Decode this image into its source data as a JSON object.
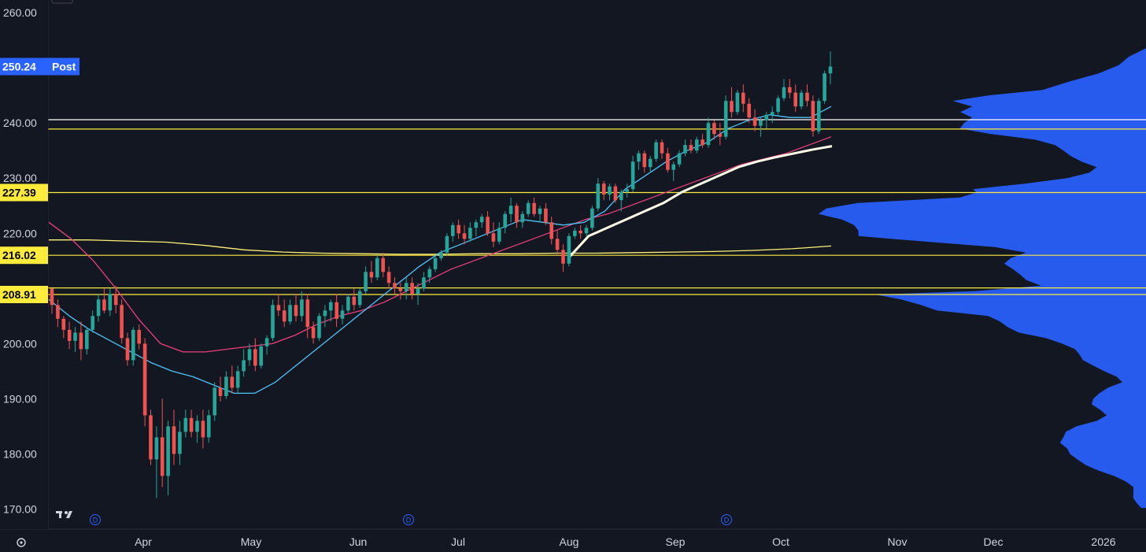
{
  "chart_data": {
    "type": "candlestick",
    "y_ticks": [
      "260.00",
      "240.00",
      "230.00",
      "220.00",
      "200.00",
      "190.00",
      "180.00",
      "170.00"
    ],
    "y_tick_values": [
      260,
      240,
      230,
      220,
      200,
      190,
      180,
      170
    ],
    "ylim": [
      168.5,
      262.3
    ],
    "x_ticks": [
      "Apr",
      "May",
      "Jun",
      "Jul",
      "Aug",
      "Sep",
      "Oct",
      "Nov",
      "Dec",
      "2026"
    ],
    "price_tags": [
      {
        "value": 250.24,
        "label": "250.24",
        "suffix": "Post",
        "color": "#2962ff",
        "text_color": "#ffffff"
      },
      {
        "value": 227.39,
        "label": "227.39",
        "color": "#ffeb3b",
        "text_color": "#000000"
      },
      {
        "value": 216.02,
        "label": "216.02",
        "color": "#ffeb3b",
        "text_color": "#000000"
      },
      {
        "value": 208.91,
        "label": "208.91",
        "color": "#ffeb3b",
        "text_color": "#000000"
      }
    ],
    "horizontal_levels": [
      {
        "value": 240.6,
        "color": "#ffffff"
      },
      {
        "value": 238.9,
        "color": "#ffeb3b"
      },
      {
        "value": 227.39,
        "color": "#ffeb3b"
      },
      {
        "value": 216.02,
        "color": "#ffeb3b"
      },
      {
        "value": 210.1,
        "color": "#ffeb3b"
      },
      {
        "value": 208.91,
        "color": "#ffeb3b"
      }
    ],
    "dividend_markers": [
      "D",
      "D",
      "D"
    ],
    "colors": {
      "up": "#26a69a",
      "down": "#ef5350",
      "volume_profile": "#2962ff",
      "ma_fast": "#4fc3f7",
      "ma_mid": "#ec407a",
      "ma_slow": "#fff176",
      "vwap": "#fffde7"
    },
    "candles": [
      [
        210.0,
        209.5,
        205.4,
        207.0
      ],
      [
        207.0,
        208.0,
        203.0,
        204.5
      ],
      [
        204.5,
        205.0,
        201.0,
        202.5
      ],
      [
        202.5,
        204.0,
        199.0,
        200.5
      ],
      [
        200.5,
        203.0,
        198.5,
        202.0
      ],
      [
        202.0,
        204.0,
        197.0,
        199.0
      ],
      [
        199.0,
        203.0,
        198.0,
        202.5
      ],
      [
        202.5,
        206.0,
        202.0,
        205.0
      ],
      [
        205.0,
        209.0,
        204.0,
        208.0
      ],
      [
        208.0,
        210.0,
        205.5,
        206.0
      ],
      [
        206.0,
        210.0,
        205.0,
        209.0
      ],
      [
        209.0,
        210.5,
        205.5,
        207.0
      ],
      [
        207.0,
        208.0,
        200.0,
        201.0
      ],
      [
        201.0,
        202.0,
        196.0,
        197.0
      ],
      [
        197.0,
        203.0,
        196.0,
        202.5
      ],
      [
        202.5,
        203.5,
        199.0,
        200.0
      ],
      [
        200.0,
        201.0,
        185.0,
        187.0
      ],
      [
        187.0,
        188.0,
        178.0,
        179.0
      ],
      [
        179.0,
        185.0,
        172.0,
        183.0
      ],
      [
        183.0,
        190.0,
        174.0,
        176.0
      ],
      [
        176.0,
        186.0,
        172.5,
        185.0
      ],
      [
        185.0,
        188.0,
        178.0,
        180.0
      ],
      [
        180.0,
        186.0,
        178.0,
        184.0
      ],
      [
        184.0,
        188.0,
        183.0,
        186.5
      ],
      [
        186.5,
        188.0,
        183.0,
        184.0
      ],
      [
        184.0,
        187.0,
        182.0,
        186.0
      ],
      [
        186.0,
        188.0,
        181.0,
        183.0
      ],
      [
        183.0,
        188.0,
        182.0,
        187.0
      ],
      [
        187.0,
        193.0,
        186.0,
        192.0
      ],
      [
        192.0,
        194.0,
        189.5,
        190.5
      ],
      [
        190.5,
        195.0,
        190.0,
        194.0
      ],
      [
        194.0,
        196.0,
        191.0,
        192.0
      ],
      [
        192.0,
        196.0,
        191.0,
        195.0
      ],
      [
        195.0,
        199.0,
        194.0,
        197.0
      ],
      [
        197.0,
        200.0,
        196.0,
        199.0
      ],
      [
        199.0,
        201.0,
        195.0,
        196.0
      ],
      [
        196.0,
        200.0,
        195.5,
        199.5
      ],
      [
        199.5,
        201.5,
        198.0,
        201.0
      ],
      [
        201.0,
        208.0,
        200.5,
        207.0
      ],
      [
        207.0,
        209.0,
        205.0,
        206.0
      ],
      [
        206.0,
        208.0,
        203.0,
        204.0
      ],
      [
        204.0,
        208.0,
        203.5,
        207.0
      ],
      [
        207.0,
        209.0,
        204.0,
        205.0
      ],
      [
        205.0,
        209.5,
        204.0,
        208.0
      ],
      [
        208.0,
        209.0,
        201.0,
        203.0
      ],
      [
        203.0,
        204.0,
        200.0,
        201.0
      ],
      [
        201.0,
        205.5,
        200.5,
        205.0
      ],
      [
        205.0,
        207.0,
        203.0,
        206.0
      ],
      [
        206.0,
        208.0,
        204.0,
        207.5
      ],
      [
        207.5,
        209.0,
        203.0,
        204.5
      ],
      [
        204.5,
        207.0,
        203.5,
        206.0
      ],
      [
        206.0,
        209.0,
        205.5,
        208.5
      ],
      [
        208.5,
        210.0,
        206.0,
        207.0
      ],
      [
        207.0,
        210.0,
        206.5,
        209.5
      ],
      [
        209.5,
        214.0,
        209.0,
        213.0
      ],
      [
        213.0,
        215.0,
        211.0,
        212.0
      ],
      [
        212.0,
        216.0,
        211.5,
        215.5
      ],
      [
        215.5,
        216.5,
        212.0,
        213.0
      ],
      [
        213.0,
        214.0,
        210.0,
        211.0
      ],
      [
        211.0,
        212.0,
        209.0,
        210.0
      ],
      [
        210.0,
        211.0,
        208.0,
        209.5
      ],
      [
        209.5,
        212.0,
        208.0,
        211.0
      ],
      [
        211.0,
        212.0,
        208.0,
        209.0
      ],
      [
        209.0,
        211.0,
        207.0,
        210.0
      ],
      [
        210.0,
        213.0,
        209.5,
        212.0
      ],
      [
        212.0,
        214.0,
        211.0,
        213.5
      ],
      [
        213.5,
        216.0,
        213.0,
        215.5
      ],
      [
        215.5,
        217.0,
        215.0,
        216.5
      ],
      [
        216.5,
        220.0,
        216.0,
        219.5
      ],
      [
        219.5,
        222.0,
        218.5,
        221.5
      ],
      [
        221.5,
        222.5,
        219.0,
        220.0
      ],
      [
        220.0,
        221.5,
        218.0,
        219.0
      ],
      [
        219.0,
        222.0,
        218.5,
        221.0
      ],
      [
        221.0,
        222.5,
        219.5,
        222.0
      ],
      [
        222.0,
        223.5,
        221.0,
        223.0
      ],
      [
        223.0,
        224.0,
        219.5,
        220.0
      ],
      [
        220.0,
        222.0,
        217.5,
        218.5
      ],
      [
        218.5,
        222.0,
        218.0,
        221.0
      ],
      [
        221.0,
        224.0,
        220.0,
        223.5
      ],
      [
        223.5,
        226.5,
        222.0,
        225.0
      ],
      [
        225.0,
        225.5,
        221.0,
        222.0
      ],
      [
        222.0,
        224.0,
        221.0,
        223.5
      ],
      [
        223.5,
        226.0,
        223.0,
        225.5
      ],
      [
        225.5,
        226.5,
        223.0,
        223.5
      ],
      [
        223.5,
        225.0,
        222.0,
        224.5
      ],
      [
        224.5,
        225.5,
        221.5,
        222.0
      ],
      [
        222.0,
        223.0,
        218.0,
        219.0
      ],
      [
        219.0,
        220.5,
        216.0,
        217.0
      ],
      [
        217.0,
        218.0,
        213.0,
        214.5
      ],
      [
        214.5,
        220.0,
        214.0,
        219.5
      ],
      [
        219.5,
        221.0,
        219.0,
        220.5
      ],
      [
        220.5,
        221.5,
        219.0,
        220.0
      ],
      [
        220.0,
        221.5,
        219.5,
        221.0
      ],
      [
        221.0,
        225.0,
        220.5,
        224.5
      ],
      [
        224.5,
        230.0,
        224.0,
        229.0
      ],
      [
        229.0,
        229.5,
        226.0,
        227.0
      ],
      [
        227.0,
        229.0,
        226.0,
        228.5
      ],
      [
        228.5,
        229.0,
        225.5,
        226.0
      ],
      [
        226.0,
        228.0,
        224.0,
        227.5
      ],
      [
        227.5,
        229.0,
        226.5,
        228.0
      ],
      [
        228.0,
        234.0,
        227.5,
        233.0
      ],
      [
        233.0,
        235.0,
        231.5,
        234.5
      ],
      [
        234.5,
        235.0,
        231.0,
        232.0
      ],
      [
        232.0,
        234.0,
        231.0,
        233.5
      ],
      [
        233.5,
        237.0,
        233.0,
        236.5
      ],
      [
        236.5,
        237.0,
        233.5,
        234.5
      ],
      [
        234.5,
        235.5,
        231.0,
        231.5
      ],
      [
        231.5,
        233.0,
        229.5,
        232.5
      ],
      [
        232.5,
        235.0,
        232.0,
        234.5
      ],
      [
        234.5,
        237.0,
        234.0,
        236.0
      ],
      [
        236.0,
        237.0,
        234.5,
        235.0
      ],
      [
        235.0,
        237.5,
        234.5,
        237.0
      ],
      [
        237.0,
        238.0,
        235.5,
        236.0
      ],
      [
        236.0,
        241.0,
        235.5,
        240.0
      ],
      [
        240.0,
        240.5,
        237.0,
        238.0
      ],
      [
        238.0,
        240.0,
        236.0,
        237.5
      ],
      [
        237.5,
        245.0,
        237.0,
        244.0
      ],
      [
        244.0,
        246.5,
        241.0,
        242.0
      ],
      [
        242.0,
        246.0,
        241.5,
        245.5
      ],
      [
        245.5,
        247.0,
        242.0,
        243.5
      ],
      [
        243.5,
        244.5,
        240.0,
        241.0
      ],
      [
        241.0,
        242.5,
        238.5,
        239.5
      ],
      [
        239.5,
        241.0,
        237.5,
        240.5
      ],
      [
        240.5,
        242.0,
        239.0,
        241.5
      ],
      [
        241.5,
        243.0,
        240.0,
        242.0
      ],
      [
        242.0,
        245.0,
        241.5,
        244.5
      ],
      [
        244.5,
        248.0,
        244.0,
        246.5
      ],
      [
        246.5,
        248.0,
        244.5,
        245.5
      ],
      [
        245.5,
        247.0,
        242.0,
        243.0
      ],
      [
        243.0,
        246.0,
        242.5,
        245.5
      ],
      [
        245.5,
        247.0,
        243.0,
        244.0
      ],
      [
        244.0,
        245.0,
        237.5,
        238.5
      ],
      [
        238.5,
        244.5,
        238.0,
        244.0
      ],
      [
        244.0,
        249.5,
        243.5,
        249.0
      ],
      [
        249.0,
        253.0,
        247.0,
        250.24
      ]
    ],
    "ma_fast": [
      208.0,
      205.0,
      202.5,
      200.5,
      198.5,
      196.5,
      195.0,
      194.0,
      192.5,
      191.0,
      191.0,
      193.0,
      196.0,
      199.0,
      202.0,
      205.0,
      208.0,
      211.0,
      214.0,
      216.5,
      218.0,
      219.5,
      221.0,
      222.5,
      222.0,
      221.5,
      222.0,
      224.0,
      228.0,
      230.5,
      233.0,
      235.0,
      236.5,
      239.0,
      240.5,
      241.5,
      241.0,
      241.0,
      243.0
    ],
    "ma_mid": [
      222.0,
      219.0,
      215.0,
      210.0,
      204.5,
      200.0,
      198.5,
      198.5,
      199.0,
      199.5,
      200.0,
      201.5,
      203.5,
      205.0,
      206.0,
      207.5,
      209.5,
      211.5,
      213.5,
      215.0,
      216.5,
      218.0,
      219.5,
      221.0,
      222.5,
      223.5,
      225.0,
      226.5,
      228.0,
      229.5,
      231.0,
      232.5,
      233.5,
      234.5,
      236.0,
      237.5
    ],
    "ma_slow": [
      218.8,
      218.8,
      218.6,
      218.4,
      217.8,
      217.0,
      216.6,
      216.4,
      216.3,
      216.2,
      216.2,
      216.3,
      216.3,
      216.4,
      216.4,
      216.5,
      216.6,
      216.7,
      216.9,
      217.2,
      217.7
    ],
    "vwap": [
      215.8,
      219.5,
      221.0,
      222.5,
      224.0,
      225.5,
      227.5,
      229.0,
      230.5,
      232.0,
      233.0,
      233.8,
      234.5,
      235.2,
      235.8
    ]
  }
}
